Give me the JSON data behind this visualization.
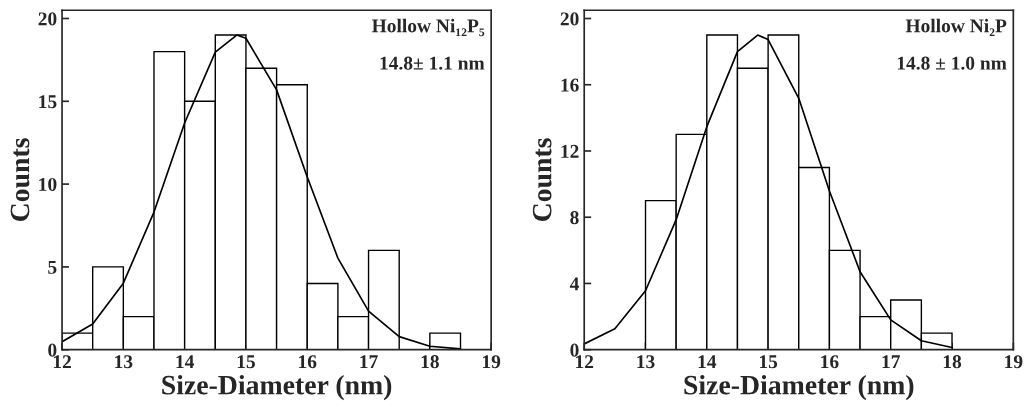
{
  "chart_data": [
    {
      "type": "histogram",
      "xlabel": "Size-Diameter (nm)",
      "ylabel": "Counts",
      "color": "#ffffff",
      "bins": [
        12,
        12.5,
        13,
        13.5,
        14,
        14.5,
        15,
        15.5,
        16,
        16.5,
        17,
        17.5,
        18,
        18.5
      ],
      "values": [
        1,
        5,
        2,
        18,
        15,
        19,
        17,
        16,
        4,
        2,
        6,
        0,
        1
      ],
      "series": [
        {
          "type": "line",
          "color": "#000000",
          "x": [
            12,
            12.5,
            13,
            13.5,
            14,
            14.5,
            14.85,
            15,
            15.5,
            16,
            16.5,
            17,
            17.5,
            18,
            18.5
          ],
          "values": [
            0.48,
            1.55,
            4.02,
            8.31,
            13.69,
            17.97,
            19,
            18.81,
            15.69,
            10.43,
            5.53,
            2.33,
            0.79,
            0.21,
            0.05
          ]
        }
      ],
      "annotations": [
        "Hollow Ni₁₂P₅",
        "14.8± 1.1 nm"
      ],
      "xlim": [
        12,
        19
      ],
      "xticks": [
        12,
        13,
        14,
        15,
        16,
        17,
        18,
        19
      ],
      "ylim": [
        0,
        20.5
      ],
      "yticks": [
        0,
        5,
        10,
        15,
        20
      ],
      "grid": false
    },
    {
      "type": "histogram",
      "xlabel": "Size-Diameter (nm)",
      "ylabel": "Counts",
      "color": "#ffffff",
      "bins": [
        13,
        13.5,
        14,
        14.5,
        15,
        15.5,
        16,
        16.5,
        17,
        17.5,
        18
      ],
      "values": [
        9,
        13,
        19,
        17,
        19,
        11,
        6,
        2,
        3,
        1
      ],
      "series": [
        {
          "type": "line",
          "color": "#000000",
          "x": [
            12,
            12.5,
            13,
            13.5,
            14,
            14.5,
            14.83,
            15,
            15.5,
            16,
            16.5,
            17,
            17.5,
            18
          ],
          "values": [
            0.35,
            1.26,
            3.56,
            7.85,
            13.47,
            18.0,
            19,
            18.73,
            15.18,
            9.58,
            4.71,
            1.8,
            0.54,
            0.13
          ]
        }
      ],
      "annotations": [
        "Hollow Ni₂P",
        "14.8 ± 1.0 nm"
      ],
      "xlim": [
        12,
        19
      ],
      "xticks": [
        12,
        13,
        14,
        15,
        16,
        17,
        18,
        19
      ],
      "ylim": [
        0,
        20.5
      ],
      "yticks": [
        0,
        4,
        8,
        12,
        16,
        20
      ],
      "grid": false
    }
  ]
}
